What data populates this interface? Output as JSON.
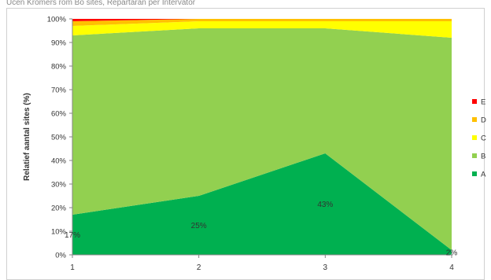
{
  "header": {
    "caption": "Ucen  Kromers rom Bo sites, Repartaran per Intervator"
  },
  "chart_data": {
    "type": "area",
    "stacked": true,
    "x": [
      "1",
      "2",
      "3",
      "4"
    ],
    "ylabel": "Relatief aantal sites (%)",
    "xlabel": "",
    "ylim": [
      0,
      100
    ],
    "yticks": [
      "0%",
      "10%",
      "20%",
      "30%",
      "40%",
      "50%",
      "60%",
      "70%",
      "80%",
      "90%",
      "100%"
    ],
    "grid": false,
    "legend_position": "right",
    "series": [
      {
        "name": "A",
        "values": [
          17,
          25,
          43,
          2
        ],
        "color": "#00b050"
      },
      {
        "name": "B",
        "values": [
          76,
          71,
          53,
          90
        ],
        "color": "#92d050"
      },
      {
        "name": "C",
        "values": [
          4,
          3,
          3,
          7
        ],
        "color": "#ffff00"
      },
      {
        "name": "D",
        "values": [
          2,
          1,
          1,
          1
        ],
        "color": "#ffc000"
      },
      {
        "name": "E",
        "values": [
          1,
          0,
          0,
          0
        ],
        "color": "#ff0000"
      }
    ],
    "data_labels": [
      {
        "series": "A",
        "index": 0,
        "text": "17%"
      },
      {
        "series": "A",
        "index": 1,
        "text": "25%"
      },
      {
        "series": "A",
        "index": 2,
        "text": "43%"
      },
      {
        "series": "A",
        "index": 3,
        "text": "2%"
      }
    ],
    "legend_order": [
      "E",
      "D",
      "C",
      "B",
      "A"
    ]
  }
}
